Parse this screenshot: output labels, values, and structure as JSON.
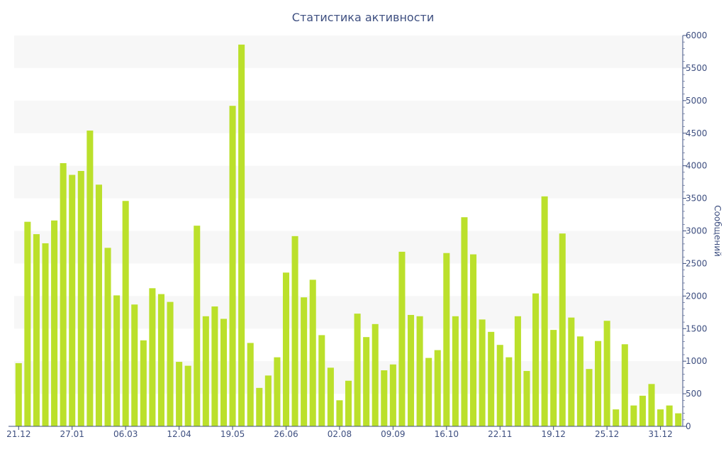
{
  "chart_data": {
    "type": "bar",
    "title": "Статистика активности",
    "ylabel": "Сообщений",
    "ylim": [
      0,
      6000
    ],
    "y_axis_side": "right",
    "yticks": [
      0,
      500,
      1000,
      1500,
      2000,
      2500,
      3000,
      3500,
      4000,
      4500,
      5000,
      5500,
      6000
    ],
    "xtick_labels": [
      {
        "index": 0,
        "label": "21.12"
      },
      {
        "index": 6,
        "label": "27.01"
      },
      {
        "index": 12,
        "label": "06.03"
      },
      {
        "index": 18,
        "label": "12.04"
      },
      {
        "index": 24,
        "label": "19.05"
      },
      {
        "index": 30,
        "label": "26.06"
      },
      {
        "index": 36,
        "label": "02.08"
      },
      {
        "index": 42,
        "label": "09.09"
      },
      {
        "index": 48,
        "label": "16.10"
      },
      {
        "index": 54,
        "label": "22.11"
      },
      {
        "index": 60,
        "label": "19.12"
      },
      {
        "index": 66,
        "label": "25.12"
      },
      {
        "index": 72,
        "label": "31.12"
      }
    ],
    "values": [
      970,
      3140,
      2950,
      2810,
      3160,
      4040,
      3860,
      3920,
      4540,
      3710,
      2740,
      2010,
      3460,
      1870,
      1320,
      2120,
      2030,
      1910,
      990,
      930,
      3080,
      1690,
      1840,
      1650,
      4920,
      5860,
      1280,
      590,
      780,
      1060,
      2360,
      2920,
      1980,
      2250,
      1400,
      900,
      400,
      700,
      1730,
      1370,
      1570,
      860,
      950,
      2680,
      1710,
      1690,
      1050,
      1170,
      2660,
      1690,
      3210,
      2640,
      1640,
      1450,
      1250,
      1060,
      1690,
      850,
      2040,
      3530,
      1480,
      2960,
      1670,
      1380,
      880,
      1310,
      1620,
      260,
      1260,
      320,
      470,
      650,
      260,
      320,
      200
    ],
    "bar_color": "#bbe02b",
    "band_color": "#f7f7f7",
    "axis_color": "#3e4f80",
    "grid": "alternating horizontal bands",
    "legend": "none"
  }
}
